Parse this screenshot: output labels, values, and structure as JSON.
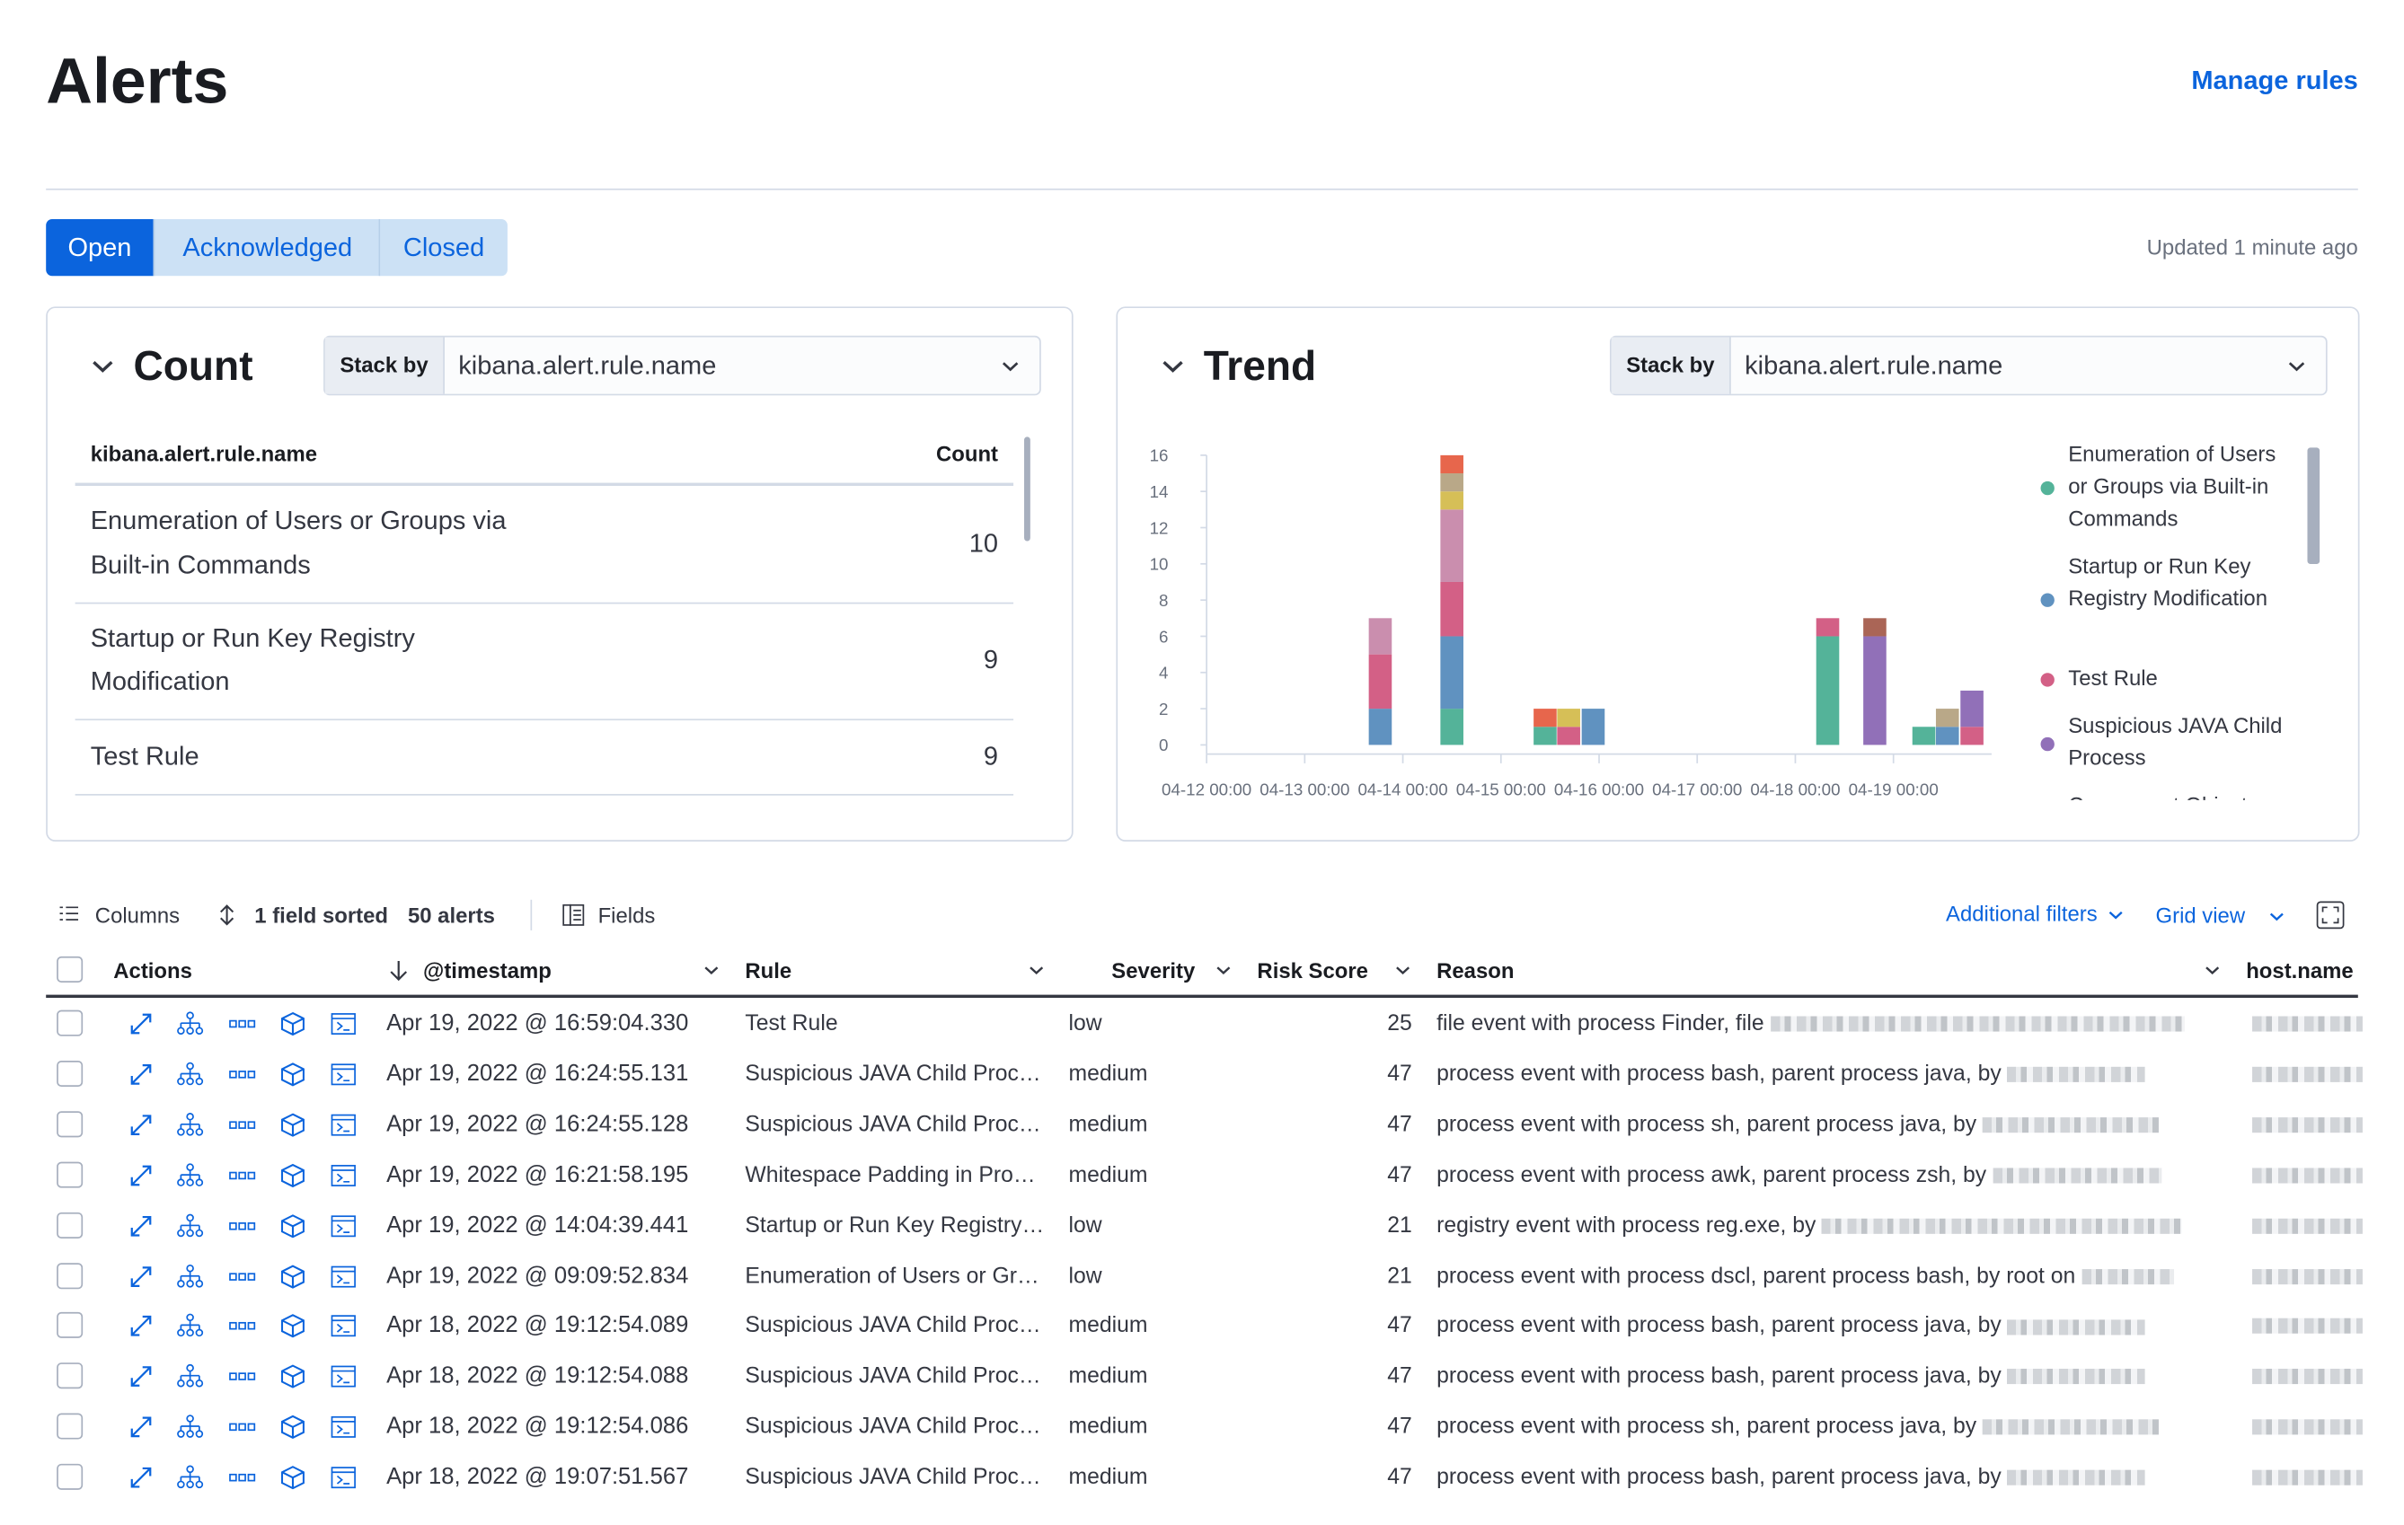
{
  "header": {
    "title": "Alerts",
    "manage_rules": "Manage rules"
  },
  "tabs": [
    "Open",
    "Acknowledged",
    "Closed"
  ],
  "active_tab": 0,
  "updated": "Updated 1 minute ago",
  "count_panel": {
    "title": "Count",
    "stack_by_label": "Stack by",
    "stack_by": "kibana.alert.rule.name",
    "columns": [
      "kibana.alert.rule.name",
      "Count"
    ],
    "rows": [
      [
        "Enumeration of Users or Groups via",
        "Built-in Commands",
        10
      ],
      [
        "Startup or Run Key Registry",
        "Modification",
        9
      ],
      [
        "Test Rule",
        null,
        9
      ]
    ]
  },
  "trend_panel": {
    "title": "Trend",
    "stack_by_label": "Stack by",
    "stack_by": "kibana.alert.rule.name"
  },
  "chart_data": {
    "type": "bar",
    "stacked": true,
    "x": [
      1.77,
      2.5,
      3.45,
      3.69,
      3.94,
      6.33,
      6.81,
      7.31,
      7.55,
      7.8
    ],
    "xlim": [
      0,
      8
    ],
    "xticks": [
      {
        "value": 0,
        "label": "04-12 00:00"
      },
      {
        "value": 1,
        "label": "04-13 00:00"
      },
      {
        "value": 2,
        "label": "04-14 00:00"
      },
      {
        "value": 3,
        "label": "04-15 00:00"
      },
      {
        "value": 4,
        "label": "04-16 00:00"
      },
      {
        "value": 5,
        "label": "04-17 00:00"
      },
      {
        "value": 6,
        "label": "04-18 00:00"
      },
      {
        "value": 7,
        "label": "04-19 00:00"
      }
    ],
    "ylim": [
      0,
      16
    ],
    "yticks": [
      0,
      2,
      4,
      6,
      8,
      10,
      12,
      14,
      16
    ],
    "series": [
      {
        "name": "Enumeration of Users or Groups via Built-in Commands",
        "color": "#54b399",
        "values": [
          null,
          2,
          1,
          null,
          null,
          6,
          null,
          1,
          null,
          null
        ]
      },
      {
        "name": "Startup or Run Key Registry Modification",
        "color": "#6092c0",
        "values": [
          2,
          4,
          null,
          null,
          2,
          null,
          null,
          null,
          1,
          null
        ]
      },
      {
        "name": "Test Rule",
        "color": "#d36086",
        "values": [
          3,
          3,
          null,
          1,
          null,
          1,
          null,
          null,
          null,
          1
        ]
      },
      {
        "name": "Suspicious JAVA Child Process",
        "color": "#9170b8",
        "values": [
          null,
          null,
          null,
          null,
          null,
          null,
          6,
          null,
          null,
          2
        ]
      },
      {
        "name": "Component Object",
        "color": "#ca8eae",
        "values": [
          2,
          4,
          null,
          null,
          null,
          null,
          null,
          null,
          null,
          null
        ]
      },
      {
        "color": "#d6bf57",
        "values": [
          null,
          1,
          null,
          1,
          null,
          null,
          null,
          null,
          null,
          null
        ]
      },
      {
        "color": "#b9a888",
        "values": [
          null,
          1,
          null,
          null,
          null,
          null,
          null,
          null,
          1,
          null
        ]
      },
      {
        "color": "#e7664c",
        "values": [
          null,
          1,
          1,
          null,
          null,
          null,
          null,
          null,
          null,
          null
        ]
      },
      {
        "color": "#aa6556",
        "values": [
          null,
          null,
          null,
          null,
          null,
          null,
          1,
          null,
          null,
          null
        ]
      }
    ]
  },
  "toolbar": {
    "columns": "Columns",
    "sorted": "1 field sorted",
    "alerts": "50 alerts",
    "fields": "Fields",
    "additional_filters": "Additional filters",
    "grid_view": "Grid view"
  },
  "table": {
    "columns": [
      "Actions",
      "@timestamp",
      "Rule",
      "Severity",
      "Risk Score",
      "Reason",
      "host.name"
    ],
    "rows": [
      [
        "Apr 19, 2022 @ 16:59:04.330",
        "Test Rule",
        "low",
        25,
        "file event with process Finder, file"
      ],
      [
        "Apr 19, 2022 @ 16:24:55.131",
        "Suspicious JAVA Child Proc…",
        "medium",
        47,
        "process event with process bash, parent process java, by"
      ],
      [
        "Apr 19, 2022 @ 16:24:55.128",
        "Suspicious JAVA Child Proc…",
        "medium",
        47,
        "process event with process sh, parent process java, by"
      ],
      [
        "Apr 19, 2022 @ 16:21:58.195",
        "Whitespace Padding in Pro…",
        "medium",
        47,
        "process event with process awk, parent process zsh, by"
      ],
      [
        "Apr 19, 2022 @ 14:04:39.441",
        "Startup or Run Key Registry…",
        "low",
        21,
        "registry event with process reg.exe, by"
      ],
      [
        "Apr 19, 2022 @ 09:09:52.834",
        "Enumeration of Users or Gr…",
        "low",
        21,
        "process event with process dscl, parent process bash, by root on"
      ],
      [
        "Apr 18, 2022 @ 19:12:54.089",
        "Suspicious JAVA Child Proc…",
        "medium",
        47,
        "process event with process bash, parent process java, by"
      ],
      [
        "Apr 18, 2022 @ 19:12:54.088",
        "Suspicious JAVA Child Proc…",
        "medium",
        47,
        "process event with process bash, parent process java, by"
      ],
      [
        "Apr 18, 2022 @ 19:12:54.086",
        "Suspicious JAVA Child Proc…",
        "medium",
        47,
        "process event with process sh, parent process java, by"
      ],
      [
        "Apr 18, 2022 @ 19:07:51.567",
        "Suspicious JAVA Child Proc…",
        "medium",
        47,
        "process event with process bash, parent process java, by"
      ]
    ]
  }
}
